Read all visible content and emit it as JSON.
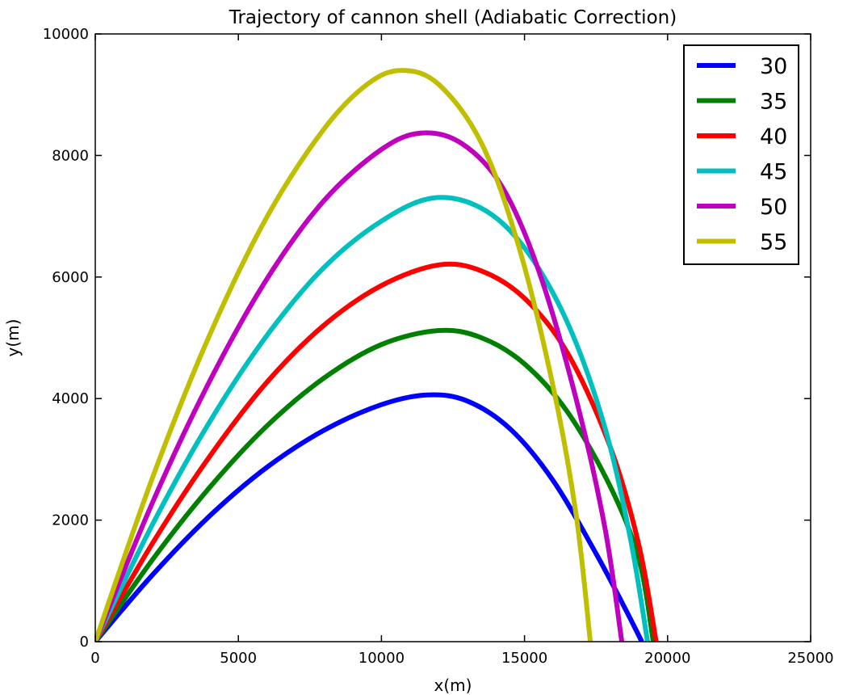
{
  "chart_data": {
    "type": "line",
    "title": "Trajectory of cannon shell (Adiabatic Correction)",
    "xlabel": "x(m)",
    "ylabel": "y(m)",
    "xlim": [
      0,
      25000
    ],
    "ylim": [
      0,
      10000
    ],
    "xticks": [
      "0",
      "5000",
      "10000",
      "15000",
      "20000",
      "25000"
    ],
    "yticks": [
      "0",
      "2000",
      "4000",
      "6000",
      "8000",
      "10000"
    ],
    "grid": false,
    "legend_position": "top-right",
    "series": [
      {
        "name": "30",
        "color": "#0000ff",
        "x": [
          0,
          2000,
          4000,
          6000,
          8000,
          10000,
          11600,
          13000,
          14500,
          16000,
          17500,
          18500,
          19100
        ],
        "y": [
          0,
          1100,
          2070,
          2870,
          3480,
          3900,
          4060,
          3960,
          3500,
          2650,
          1450,
          560,
          0
        ]
      },
      {
        "name": "35",
        "color": "#008000",
        "x": [
          0,
          2000,
          4000,
          6000,
          8000,
          10000,
          12000,
          13500,
          15000,
          16500,
          18000,
          19000,
          19500
        ],
        "y": [
          0,
          1350,
          2540,
          3550,
          4340,
          4890,
          5120,
          5000,
          4570,
          3780,
          2550,
          1350,
          0
        ]
      },
      {
        "name": "40",
        "color": "#ff0000",
        "x": [
          0,
          2000,
          4000,
          6000,
          8000,
          10000,
          12000,
          13500,
          15000,
          16500,
          18000,
          19000,
          19600
        ],
        "y": [
          0,
          1620,
          3050,
          4270,
          5210,
          5860,
          6200,
          6100,
          5650,
          4750,
          3200,
          1580,
          0
        ]
      },
      {
        "name": "45",
        "color": "#00bfbf",
        "x": [
          0,
          2000,
          4000,
          6000,
          8000,
          10000,
          11800,
          13500,
          15000,
          16500,
          17800,
          18700,
          19300
        ],
        "y": [
          0,
          1930,
          3620,
          5040,
          6160,
          6920,
          7300,
          7130,
          6480,
          5250,
          3540,
          1700,
          0
        ]
      },
      {
        "name": "50",
        "color": "#bf00bf",
        "x": [
          0,
          2000,
          4000,
          6000,
          8000,
          10000,
          11400,
          12800,
          14200,
          15500,
          16800,
          17800,
          18400
        ],
        "y": [
          0,
          2290,
          4290,
          5970,
          7260,
          8100,
          8370,
          8200,
          7500,
          6100,
          4000,
          1900,
          0
        ]
      },
      {
        "name": "55",
        "color": "#bfbf00",
        "x": [
          0,
          2000,
          4000,
          6000,
          8000,
          9500,
          10700,
          12000,
          13500,
          14800,
          16000,
          16800,
          17300
        ],
        "y": [
          0,
          2700,
          5050,
          6990,
          8440,
          9170,
          9400,
          9170,
          8200,
          6500,
          4200,
          2100,
          0
        ]
      }
    ]
  }
}
